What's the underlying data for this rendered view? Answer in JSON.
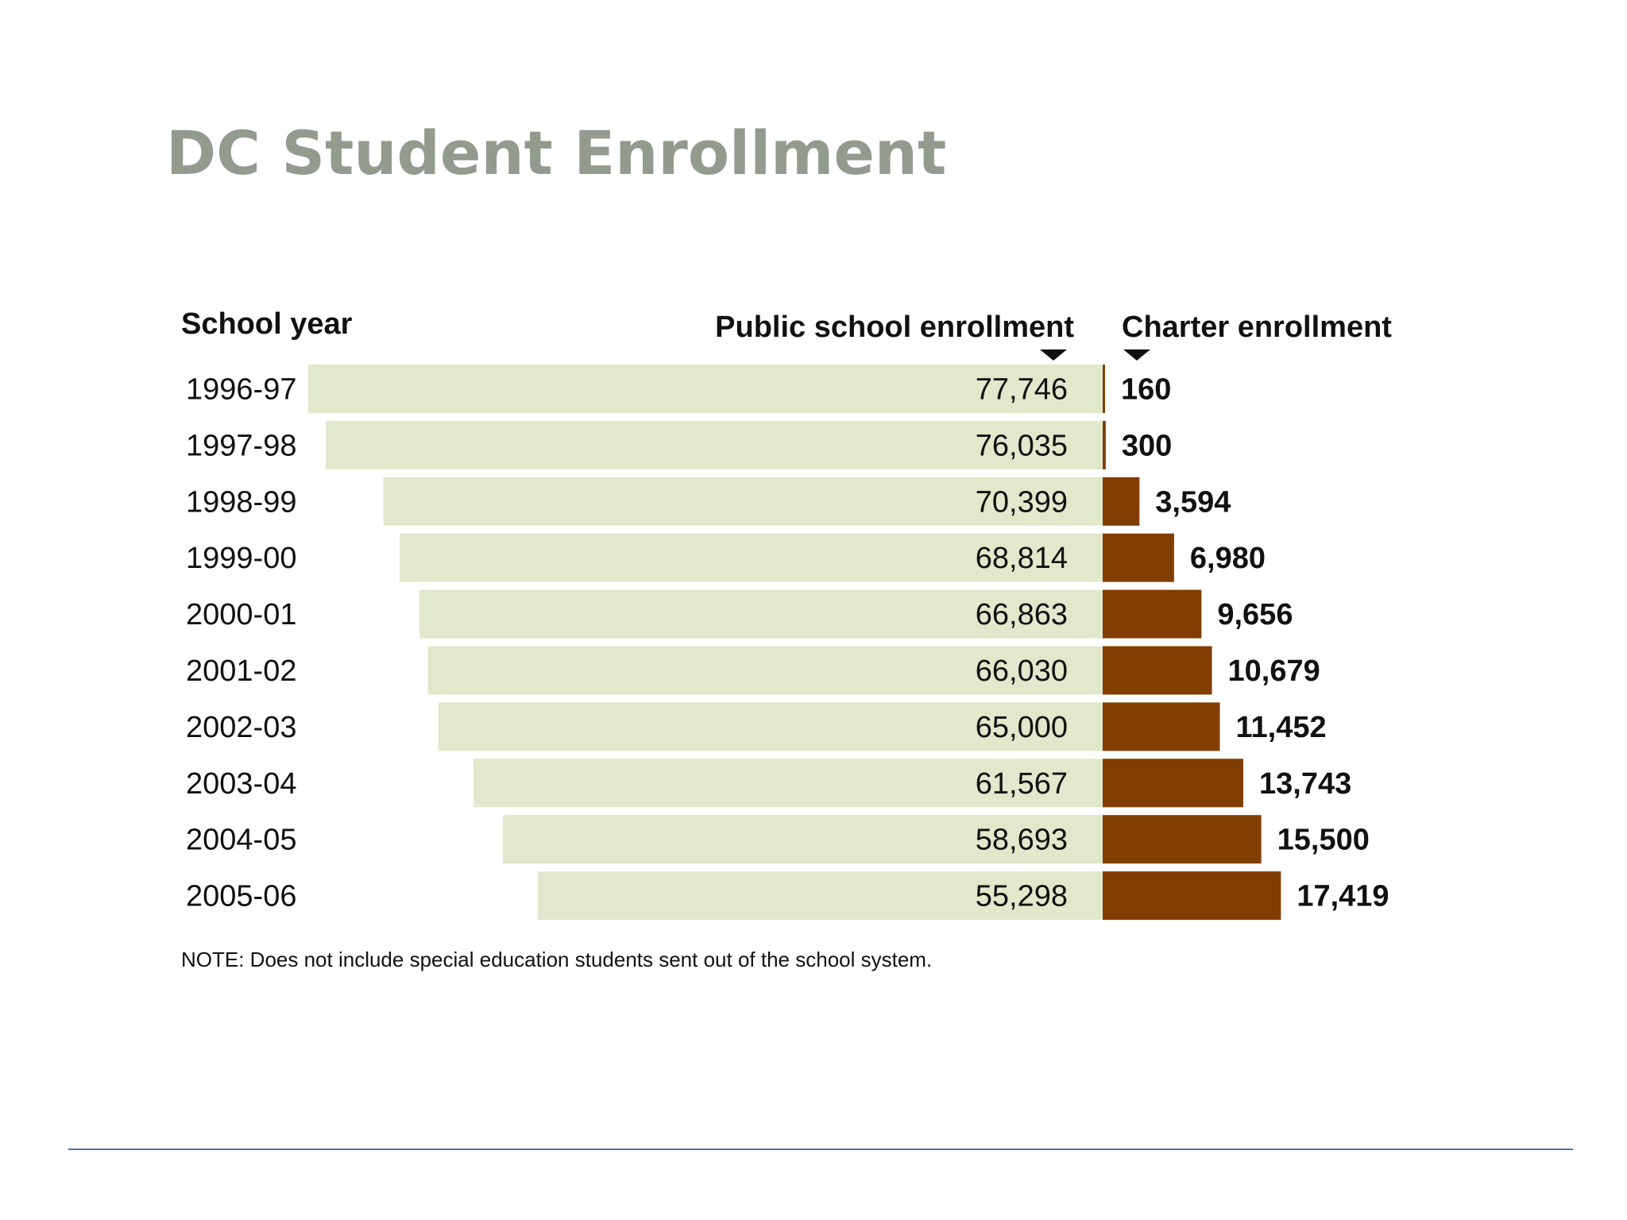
{
  "slide": {
    "title": "DC Student Enrollment"
  },
  "chart_data": {
    "type": "bar",
    "headers": {
      "year": "School year",
      "public": "Public school enrollment",
      "charter": "Charter enrollment"
    },
    "categories": [
      "1996-97",
      "1997-98",
      "1998-99",
      "1999-00",
      "2000-01",
      "2001-02",
      "2002-03",
      "2003-04",
      "2004-05",
      "2005-06"
    ],
    "series": [
      {
        "name": "Public school enrollment",
        "values": [
          77746,
          76035,
          70399,
          68814,
          66863,
          66030,
          65000,
          61567,
          58693,
          55298
        ],
        "labels": [
          "77,746",
          "76,035",
          "70,399",
          "68,814",
          "66,863",
          "66,030",
          "65,000",
          "61,567",
          "58,693",
          "55,298"
        ],
        "color": "#e1e8cb"
      },
      {
        "name": "Charter enrollment",
        "values": [
          160,
          300,
          3594,
          6980,
          9656,
          10679,
          11452,
          13743,
          15500,
          17419
        ],
        "labels": [
          "160",
          "300",
          "3,594",
          "6,980",
          "9,656",
          "10,679",
          "11,452",
          "13,743",
          "15,500",
          "17,419"
        ],
        "color": "#823e00"
      }
    ],
    "note": "NOTE: Does not include special education students sent out of the school system."
  },
  "colors": {
    "title": "#939b8f",
    "footer_line": "#4a7aa3"
  }
}
